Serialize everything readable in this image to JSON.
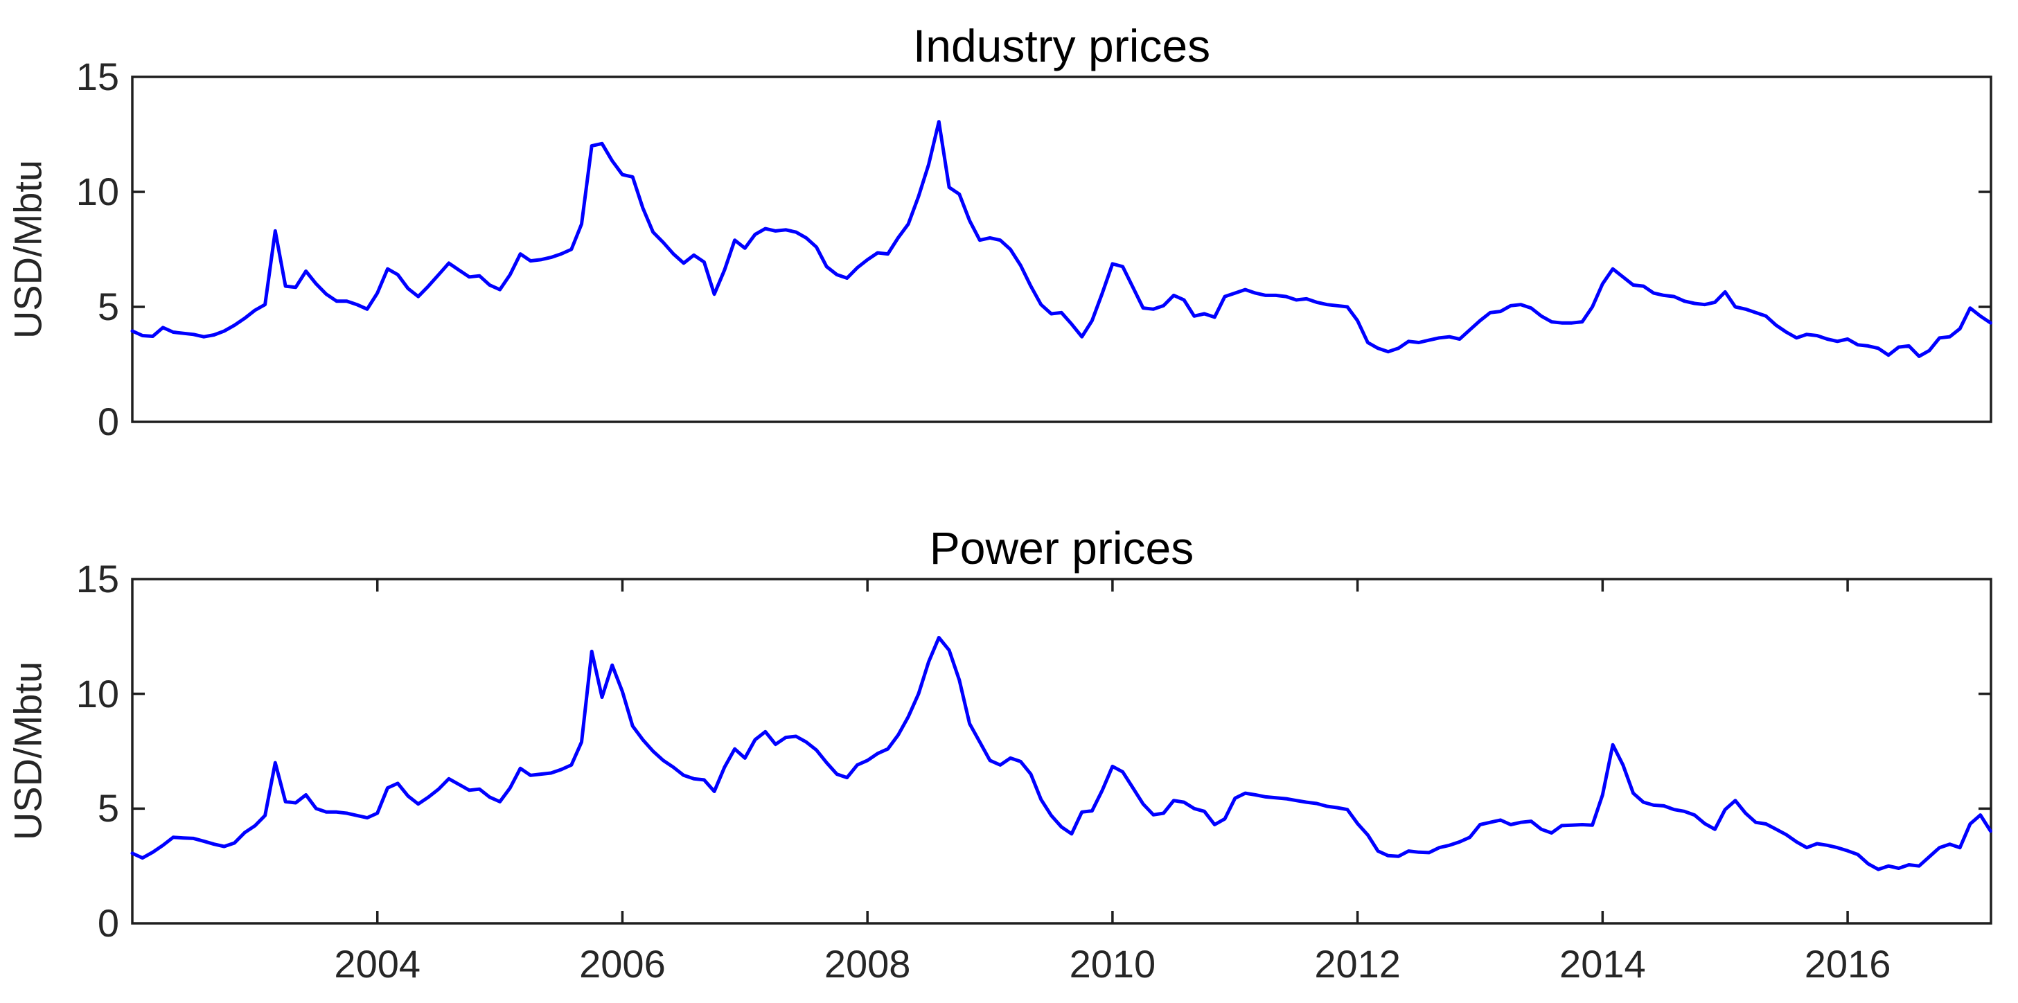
{
  "figure": {
    "background_color": "#ffffff",
    "axis_color": "#1f1f1f",
    "tick_label_color": "#262626",
    "line_color": "#0000ff"
  },
  "chart_data": [
    {
      "type": "line",
      "title": "Industry prices",
      "ylabel": "USD/Mbtu",
      "series_name": "industry-price-line",
      "color": "#0000ff",
      "xlim": [
        2002.0,
        2017.17
      ],
      "ylim": [
        0,
        15
      ],
      "yticks": [
        0,
        5,
        10,
        15
      ],
      "xticks": [
        2004,
        2006,
        2008,
        2010,
        2012,
        2014,
        2016
      ],
      "show_x_tick_labels": false,
      "grid": false,
      "legend": "none",
      "x_start": 2002.0,
      "x_step_years": 0.0833333,
      "values": [
        3.95,
        3.75,
        3.72,
        4.1,
        3.9,
        3.85,
        3.8,
        3.7,
        3.78,
        3.95,
        4.2,
        4.5,
        4.85,
        5.1,
        8.3,
        5.9,
        5.85,
        6.55,
        6.0,
        5.55,
        5.25,
        5.25,
        5.1,
        4.9,
        5.6,
        6.65,
        6.4,
        5.8,
        5.45,
        5.9,
        6.4,
        6.9,
        6.6,
        6.3,
        6.35,
        5.95,
        5.75,
        6.4,
        7.3,
        7.0,
        7.05,
        7.15,
        7.3,
        7.5,
        8.6,
        12.0,
        12.1,
        11.35,
        10.75,
        10.65,
        9.3,
        8.25,
        7.8,
        7.3,
        6.9,
        7.25,
        6.95,
        5.55,
        6.6,
        7.9,
        7.55,
        8.15,
        8.4,
        8.3,
        8.35,
        8.25,
        8.0,
        7.6,
        6.75,
        6.4,
        6.25,
        6.7,
        7.05,
        7.35,
        7.3,
        8.0,
        8.6,
        9.8,
        11.2,
        13.05,
        10.2,
        9.9,
        8.75,
        7.9,
        8.0,
        7.9,
        7.5,
        6.8,
        5.9,
        5.1,
        4.7,
        4.75,
        4.25,
        3.7,
        4.4,
        5.6,
        6.87,
        6.75,
        5.85,
        4.95,
        4.9,
        5.05,
        5.5,
        5.3,
        4.6,
        4.7,
        4.55,
        5.45,
        5.6,
        5.75,
        5.6,
        5.5,
        5.5,
        5.45,
        5.3,
        5.35,
        5.2,
        5.1,
        5.05,
        5.0,
        4.4,
        3.45,
        3.2,
        3.05,
        3.2,
        3.5,
        3.45,
        3.55,
        3.65,
        3.7,
        3.6,
        4.0,
        4.4,
        4.75,
        4.8,
        5.05,
        5.1,
        4.95,
        4.6,
        4.35,
        4.3,
        4.3,
        4.35,
        5.0,
        6.0,
        6.65,
        6.3,
        5.95,
        5.9,
        5.6,
        5.5,
        5.45,
        5.25,
        5.15,
        5.1,
        5.2,
        5.65,
        5.0,
        4.9,
        4.75,
        4.6,
        4.2,
        3.9,
        3.65,
        3.8,
        3.75,
        3.6,
        3.5,
        3.6,
        3.35,
        3.3,
        3.2,
        2.9,
        3.25,
        3.3,
        2.85,
        3.1,
        3.65,
        3.7,
        4.05,
        4.95,
        4.6,
        4.3
      ]
    },
    {
      "type": "line",
      "title": "Power prices",
      "ylabel": "USD/Mbtu",
      "series_name": "power-price-line",
      "color": "#0000ff",
      "xlim": [
        2002.0,
        2017.17
      ],
      "ylim": [
        0,
        15
      ],
      "yticks": [
        0,
        5,
        10,
        15
      ],
      "xticks": [
        2004,
        2006,
        2008,
        2010,
        2012,
        2014,
        2016
      ],
      "show_x_tick_labels": true,
      "grid": false,
      "legend": "none",
      "x_start": 2002.0,
      "x_step_years": 0.0833333,
      "values": [
        3.05,
        2.85,
        3.1,
        3.4,
        3.75,
        3.72,
        3.7,
        3.58,
        3.45,
        3.35,
        3.5,
        3.95,
        4.25,
        4.7,
        7.0,
        5.3,
        5.25,
        5.6,
        5.0,
        4.85,
        4.85,
        4.8,
        4.7,
        4.6,
        4.8,
        5.9,
        6.1,
        5.55,
        5.2,
        5.5,
        5.85,
        6.3,
        6.05,
        5.8,
        5.85,
        5.5,
        5.3,
        5.9,
        6.75,
        6.45,
        6.5,
        6.55,
        6.7,
        6.9,
        7.9,
        11.85,
        9.85,
        11.25,
        10.1,
        8.6,
        8.0,
        7.5,
        7.1,
        6.8,
        6.45,
        6.3,
        6.25,
        5.75,
        6.8,
        7.6,
        7.2,
        8.0,
        8.35,
        7.8,
        8.1,
        8.15,
        7.9,
        7.55,
        7.0,
        6.5,
        6.35,
        6.9,
        7.1,
        7.4,
        7.6,
        8.2,
        9.0,
        10.0,
        11.4,
        12.45,
        11.9,
        10.6,
        8.7,
        7.9,
        7.1,
        6.9,
        7.2,
        7.05,
        6.5,
        5.4,
        4.7,
        4.2,
        3.9,
        4.85,
        4.9,
        5.8,
        6.84,
        6.6,
        5.9,
        5.2,
        4.73,
        4.8,
        5.35,
        5.28,
        5.0,
        4.88,
        4.3,
        4.55,
        5.45,
        5.67,
        5.6,
        5.51,
        5.47,
        5.43,
        5.35,
        5.28,
        5.22,
        5.1,
        5.04,
        4.96,
        4.35,
        3.85,
        3.15,
        2.95,
        2.92,
        3.15,
        3.1,
        3.08,
        3.3,
        3.4,
        3.55,
        3.75,
        4.3,
        4.4,
        4.5,
        4.3,
        4.4,
        4.45,
        4.1,
        3.94,
        4.26,
        4.28,
        4.3,
        4.28,
        5.6,
        7.78,
        6.9,
        5.67,
        5.28,
        5.15,
        5.12,
        4.96,
        4.88,
        4.72,
        4.35,
        4.1,
        4.96,
        5.35,
        4.8,
        4.4,
        4.33,
        4.1,
        3.86,
        3.55,
        3.3,
        3.47,
        3.4,
        3.3,
        3.16,
        3.0,
        2.6,
        2.35,
        2.5,
        2.4,
        2.55,
        2.5,
        2.9,
        3.3,
        3.45,
        3.3,
        4.33,
        4.72,
        4.02
      ]
    }
  ]
}
